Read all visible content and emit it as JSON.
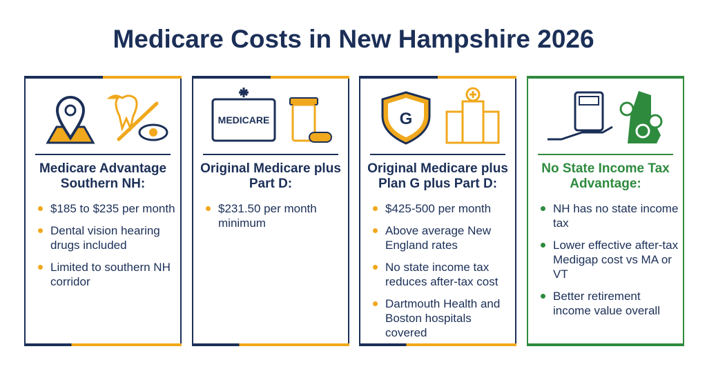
{
  "title": "Medicare Costs in New Hampshire 2026",
  "cards": [
    {
      "heading": "Medicare Advantage Southern NH:",
      "bullets": [
        "$185 to $235 per month",
        "Dental vision hearing drugs included",
        "Limited to southern NH corridor"
      ]
    },
    {
      "icon_label": "MEDICARE",
      "heading": "Original Medicare plus Part D:",
      "bullets": [
        "$231.50 per month minimum"
      ]
    },
    {
      "icon_label": "G",
      "heading": "Original Medicare plus Plan G plus Part D:",
      "bullets": [
        "$425-500 per month",
        "Above average New England rates",
        "No state income tax reduces after-tax cost",
        "Dartmouth Health and Boston hospitals covered"
      ]
    },
    {
      "heading": "No State Income Tax Advantage:",
      "bullets": [
        "NH has no state income tax",
        "Lower effective after-tax Medigap cost vs MA or VT",
        "Better retirement income value overall"
      ]
    }
  ]
}
